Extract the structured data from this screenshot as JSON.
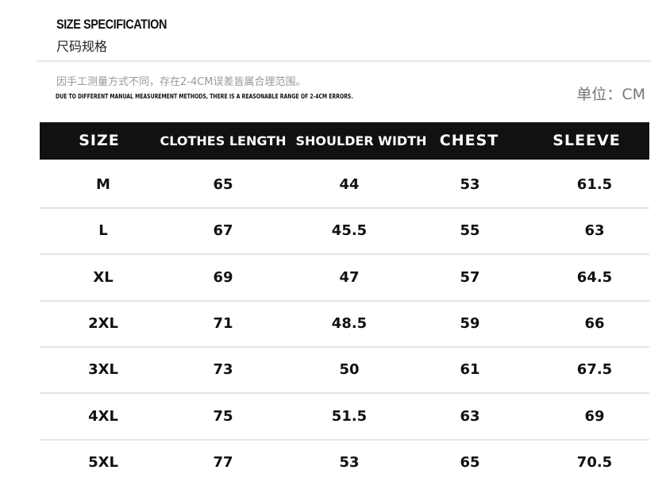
{
  "title": "SIZE SPECIFICATION",
  "title_cn": "尺码规格",
  "note_cn": "因手工测量方式不同，存在2-4CM误差皆属合理范围。",
  "note_en": "DUE TO DIFFERENT MANUAL MEASUREMENT METHODS, THERE IS A REASONABLE RANGE OF 2-4CM ERRORS.",
  "unit": "单位：CM",
  "table": {
    "headers": [
      "SIZE",
      "CLOTHES LENGTH",
      "SHOULDER WIDTH",
      "CHEST",
      "SLEEVE"
    ],
    "rows": [
      [
        "M",
        "65",
        "44",
        "53",
        "61.5"
      ],
      [
        "L",
        "67",
        "45.5",
        "55",
        "63"
      ],
      [
        "XL",
        "69",
        "47",
        "57",
        "64.5"
      ],
      [
        "2XL",
        "71",
        "48.5",
        "59",
        "66"
      ],
      [
        "3XL",
        "73",
        "50",
        "61",
        "67.5"
      ],
      [
        "4XL",
        "75",
        "51.5",
        "63",
        "69"
      ],
      [
        "5XL",
        "77",
        "53",
        "65",
        "70.5"
      ]
    ]
  }
}
